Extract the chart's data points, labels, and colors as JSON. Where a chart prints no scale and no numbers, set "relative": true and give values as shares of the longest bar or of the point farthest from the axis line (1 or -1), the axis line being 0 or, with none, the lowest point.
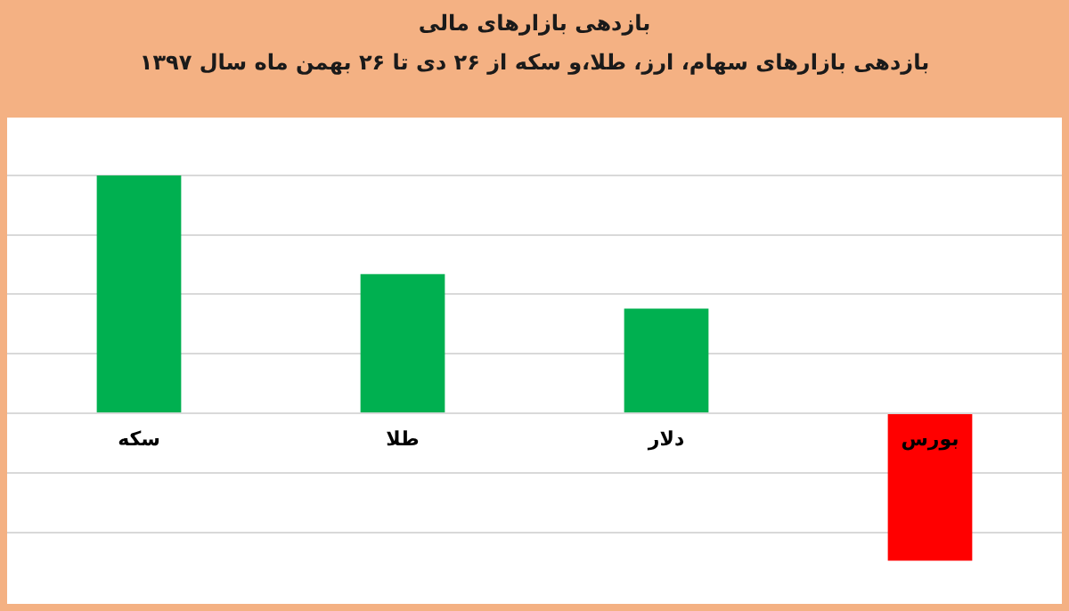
{
  "chart_data": {
    "type": "bar",
    "title": "بازدهی بازارهای مالی",
    "subtitle": "بازدهی بازارهای سهام، ارز، طلا،و سکه از ۲۶ دی تا ۲۶ بهمن ماه سال ۱۳۹۷",
    "categories": [
      "سکه",
      "طلا",
      "دلار",
      "بورس"
    ],
    "values": [
      1,
      0.585,
      0.44,
      -0.62
    ],
    "colors": [
      "#00b050",
      "#00b050",
      "#00b050",
      "#ff0000"
    ],
    "relative": true,
    "grid": "y"
  }
}
